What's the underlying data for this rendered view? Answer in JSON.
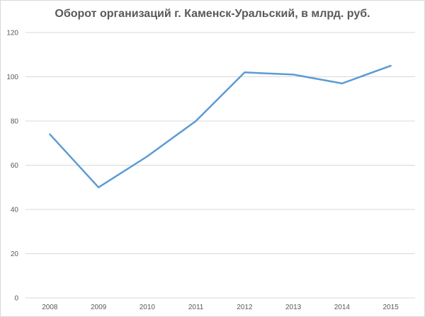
{
  "chart_data": {
    "type": "line",
    "title": "Оборот организаций г. Каменск-Уральский, в млрд. руб.",
    "xlabel": "",
    "ylabel": "",
    "categories": [
      "2008",
      "2009",
      "2010",
      "2011",
      "2012",
      "2013",
      "2014",
      "2015"
    ],
    "series": [
      {
        "values": [
          74,
          50,
          64,
          80,
          102,
          101,
          97,
          105
        ],
        "color": "#5b9bd5"
      }
    ],
    "ylim": [
      0,
      120
    ],
    "yticks": [
      0,
      20,
      40,
      60,
      80,
      100,
      120
    ],
    "grid": true,
    "legend": "none"
  }
}
